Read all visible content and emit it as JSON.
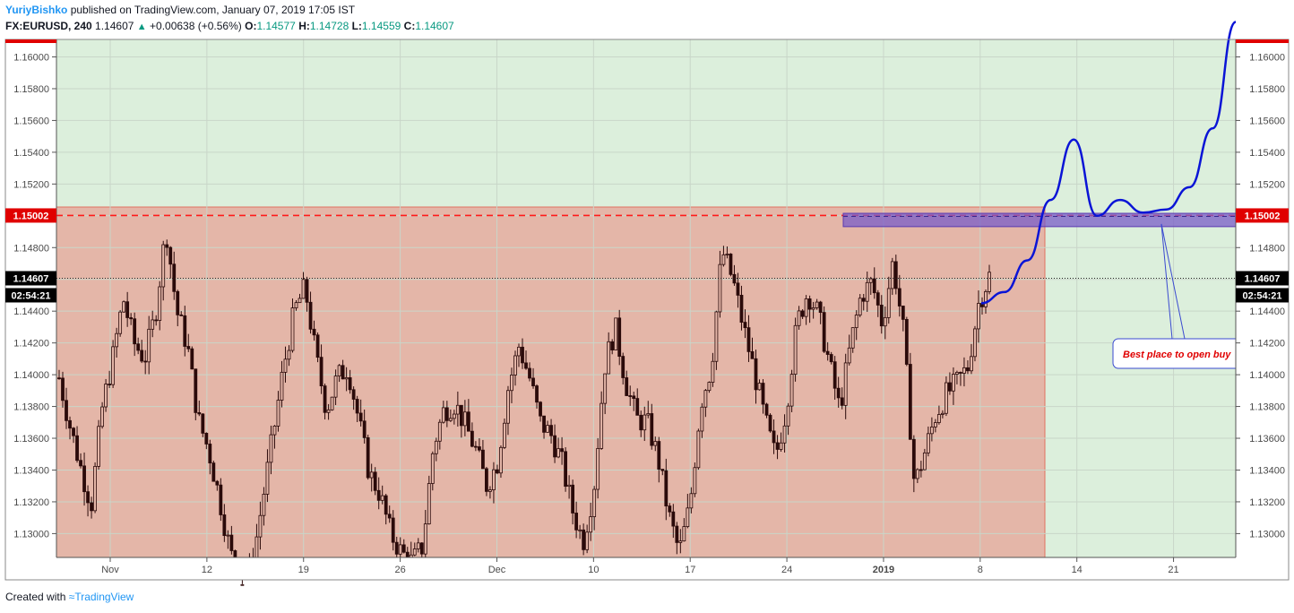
{
  "header": {
    "author": "YuriyBishko",
    "published_text": "published on TradingView.com, January 07, 2019 17:05 IST",
    "symbol": "FX:EURUSD, 240",
    "last": "1.14607",
    "change": "+0.00638 (+0.56%)",
    "o_label": "O:",
    "o_value": "1.14577",
    "h_label": "H:",
    "h_value": "1.14728",
    "l_label": "L:",
    "l_value": "1.14559",
    "c_label": "C:",
    "c_value": "1.14607"
  },
  "footer": {
    "created_with": "Created with",
    "brand": "TradingView"
  },
  "colors": {
    "green_zone": "#dcefdc",
    "red_zone": "#e4b6a8",
    "candle": "#2b0a0a",
    "resistance": "#ff1a1a",
    "buy_zone": "#7a5cc8",
    "forecast": "#0a14d6",
    "label_red": "#e00000",
    "label_black": "#000000"
  },
  "chart_data": {
    "type": "candlestick",
    "symbol": "FX:EURUSD",
    "interval": "240",
    "ylim": [
      1.1285,
      1.1611
    ],
    "y_ticks": [
      "1.16000",
      "1.15800",
      "1.15600",
      "1.15400",
      "1.15200",
      "1.15000",
      "1.14800",
      "1.14600",
      "1.14400",
      "1.14200",
      "1.14000",
      "1.13800",
      "1.13600",
      "1.13400",
      "1.13200",
      "1.13000"
    ],
    "x_ticks": [
      "Nov",
      "12",
      "19",
      "26",
      "Dec",
      "10",
      "17",
      "24",
      "2019",
      "8",
      "14",
      "21"
    ],
    "resistance_level": "1.15002",
    "current_price": "1.14607",
    "countdown": "02:54:21",
    "price_path": [
      1.1398,
      1.1368,
      1.1342,
      1.1318,
      1.1378,
      1.141,
      1.1448,
      1.142,
      1.141,
      1.1438,
      1.1492,
      1.144,
      1.1418,
      1.1372,
      1.1352,
      1.1322,
      1.1288,
      1.127,
      1.1278,
      1.132,
      1.1362,
      1.1405,
      1.144,
      1.1455,
      1.1412,
      1.1378,
      1.1398,
      1.1405,
      1.1372,
      1.1338,
      1.1325,
      1.13,
      1.1288,
      1.1282,
      1.1292,
      1.1355,
      1.1378,
      1.1382,
      1.1368,
      1.1352,
      1.133,
      1.1345,
      1.1392,
      1.1418,
      1.1398,
      1.137,
      1.1362,
      1.1345,
      1.1315,
      1.1295,
      1.1328,
      1.1405,
      1.143,
      1.1395,
      1.1372,
      1.137,
      1.1348,
      1.1312,
      1.1288,
      1.1318,
      1.1382,
      1.1405,
      1.1478,
      1.146,
      1.143,
      1.1402,
      1.1372,
      1.1348,
      1.1378,
      1.1432,
      1.1452,
      1.1438,
      1.1408,
      1.1378,
      1.1418,
      1.145,
      1.1458,
      1.1432,
      1.1472,
      1.1425,
      1.133,
      1.1352,
      1.1375,
      1.1388,
      1.1395,
      1.1405,
      1.1445,
      1.1462
    ],
    "annotation": "Best place to open buy",
    "buy_zone": [
      1.1496,
      1.1501
    ],
    "forecast_path": [
      1.1445,
      1.1452,
      1.1472,
      1.151,
      1.1548,
      1.15,
      1.151,
      1.1502,
      1.1504,
      1.1518,
      1.1555,
      1.1622
    ]
  }
}
